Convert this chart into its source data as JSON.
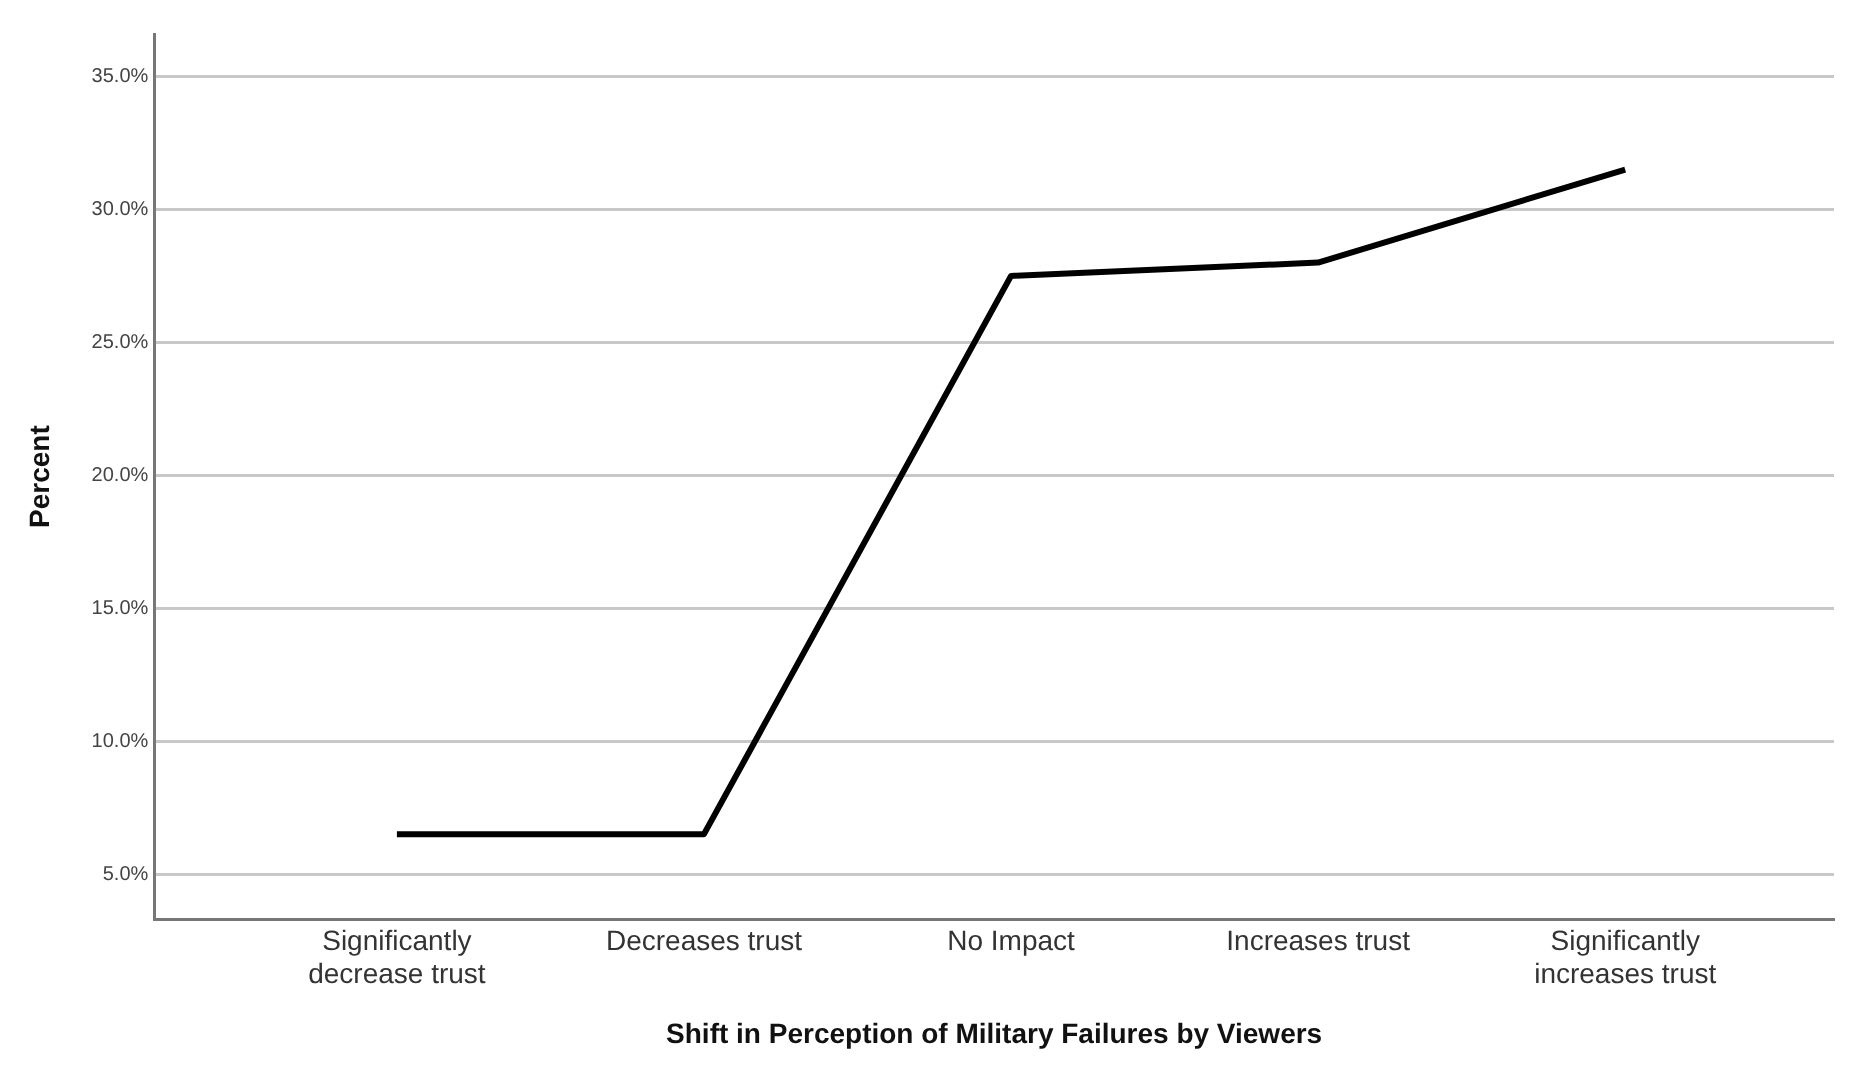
{
  "chart_data": {
    "type": "line",
    "xlabel": "Shift in Perception of Military Failures by Viewers",
    "ylabel": "Percent",
    "categories": [
      "Significantly decrease trust",
      "Decreases trust",
      "No Impact",
      "Increases trust",
      "Significantly increases trust"
    ],
    "series": [
      {
        "color": "#000000",
        "values": [
          6.5,
          6.5,
          27.5,
          28.0,
          31.5
        ]
      }
    ],
    "ylim": [
      3.3,
      36.6
    ],
    "yticks": [
      {
        "value": 5,
        "label": "5.0%"
      },
      {
        "value": 10,
        "label": "10.0%"
      },
      {
        "value": 15,
        "label": "15.0%"
      },
      {
        "value": 20,
        "label": "20.0%"
      },
      {
        "value": 25,
        "label": "25.0%"
      },
      {
        "value": 30,
        "label": "30.0%"
      },
      {
        "value": 35,
        "label": "35.0%"
      }
    ],
    "grid": "y",
    "legend": false,
    "marker": "none",
    "line_style": "solid"
  }
}
